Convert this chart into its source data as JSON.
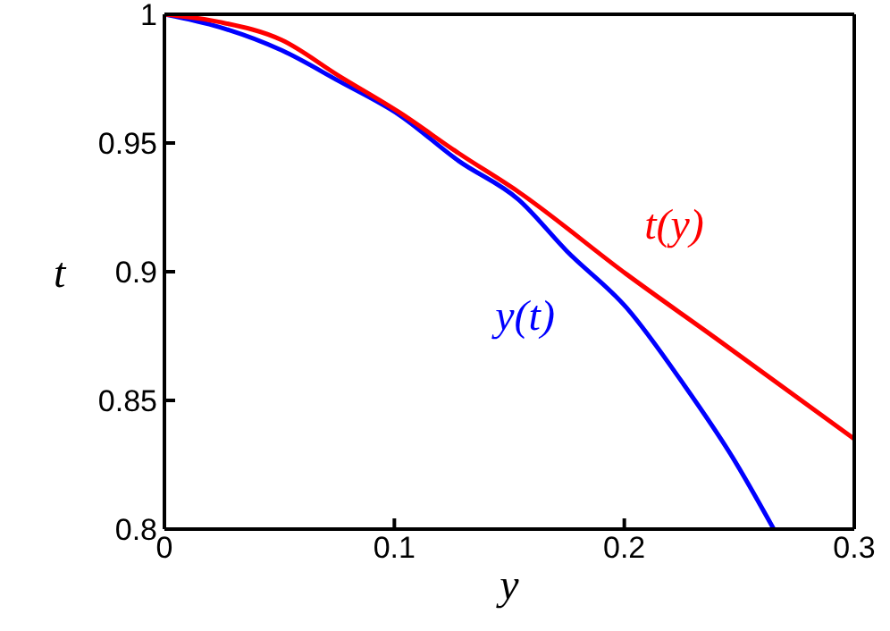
{
  "chart_data": {
    "type": "line",
    "xlabel": "y",
    "ylabel": "t",
    "xlim": [
      0,
      0.3
    ],
    "xticks": [
      0,
      0.1,
      0.2,
      0.3
    ],
    "ylim": [
      0.8,
      1
    ],
    "yticks": [
      0.8,
      0.85,
      0.9,
      0.95,
      1
    ],
    "marker": "none",
    "line_style": "solid",
    "series": [
      {
        "name": "y(t)",
        "color": "#0000ff",
        "x": [
          0,
          0.024,
          0.051,
          0.076,
          0.102,
          0.128,
          0.154,
          0.175,
          0.201,
          0.226,
          0.247,
          0.265
        ],
        "values": [
          1,
          0.995,
          0.986,
          0.974,
          0.961,
          0.943,
          0.928,
          0.908,
          0.886,
          0.856,
          0.828,
          0.8
        ]
      },
      {
        "name": "t(y)",
        "color": "#ff0000",
        "x": [
          0,
          0.024,
          0.051,
          0.076,
          0.102,
          0.128,
          0.154,
          0.201,
          0.24,
          0.3
        ],
        "values": [
          1,
          0.997,
          0.99,
          0.976,
          0.962,
          0.946,
          0.931,
          0.899,
          0.874,
          0.835
        ]
      }
    ]
  }
}
